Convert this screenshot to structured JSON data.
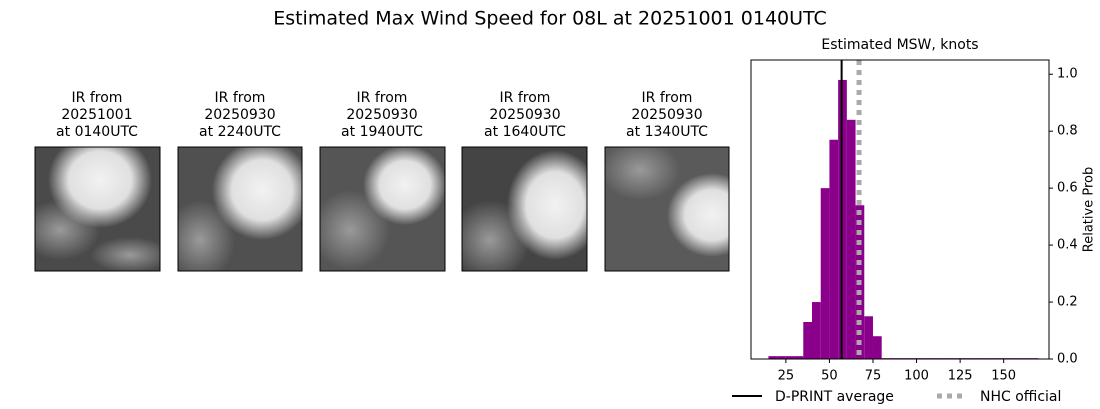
{
  "title": "Estimated Max Wind Speed for 08L at 20251001 0140UTC",
  "images": [
    {
      "lines": [
        "IR from",
        "20251001",
        "at 0140UTC"
      ]
    },
    {
      "lines": [
        "IR from",
        "20250930",
        "at 2240UTC"
      ]
    },
    {
      "lines": [
        "IR from",
        "20250930",
        "at 1940UTC"
      ]
    },
    {
      "lines": [
        "IR from",
        "20250930",
        "at 1640UTC"
      ]
    },
    {
      "lines": [
        "IR from",
        "20250930",
        "at 1340UTC"
      ]
    }
  ],
  "chart_data": {
    "type": "histogram",
    "title": "Estimated MSW, knots",
    "y_label": "Relative Prob",
    "bins": [
      15,
      20,
      25,
      30,
      35,
      40,
      45,
      50,
      55,
      60,
      65,
      70,
      75,
      80,
      85,
      90,
      95,
      100,
      105,
      110,
      115,
      120,
      125,
      130,
      135,
      140,
      145,
      150,
      155,
      160,
      165,
      170
    ],
    "values": [
      0.01,
      0.01,
      0.01,
      0.01,
      0.13,
      0.2,
      0.6,
      0.77,
      0.98,
      0.84,
      0.54,
      0.15,
      0.08,
      0.003,
      0.003,
      0.003,
      0.003,
      0.003,
      0.003,
      0.003,
      0.003,
      0.003,
      0.003,
      0.003,
      0.003,
      0.003,
      0.003,
      0.003,
      0.003,
      0.003,
      0.003
    ],
    "color": "#8b008b",
    "xlim": [
      5,
      176
    ],
    "xticks": [
      25,
      50,
      75,
      100,
      125,
      150
    ],
    "ylim": [
      0,
      1.05
    ],
    "yticks": [
      {
        "value": 0,
        "label": "0.0"
      },
      {
        "value": 0.2,
        "label": "0.2"
      },
      {
        "value": 0.4,
        "label": "0.4"
      },
      {
        "value": 0.6,
        "label": "0.6"
      },
      {
        "value": 0.8,
        "label": "0.8"
      },
      {
        "value": 1,
        "label": "1.0"
      }
    ],
    "lines": [
      {
        "name": "D-PRINT average",
        "value": 57,
        "color": "#000000",
        "style": "solid"
      },
      {
        "name": "NHC official",
        "value": 67,
        "color": "#aaaaaa",
        "style": "dotted"
      }
    ]
  }
}
